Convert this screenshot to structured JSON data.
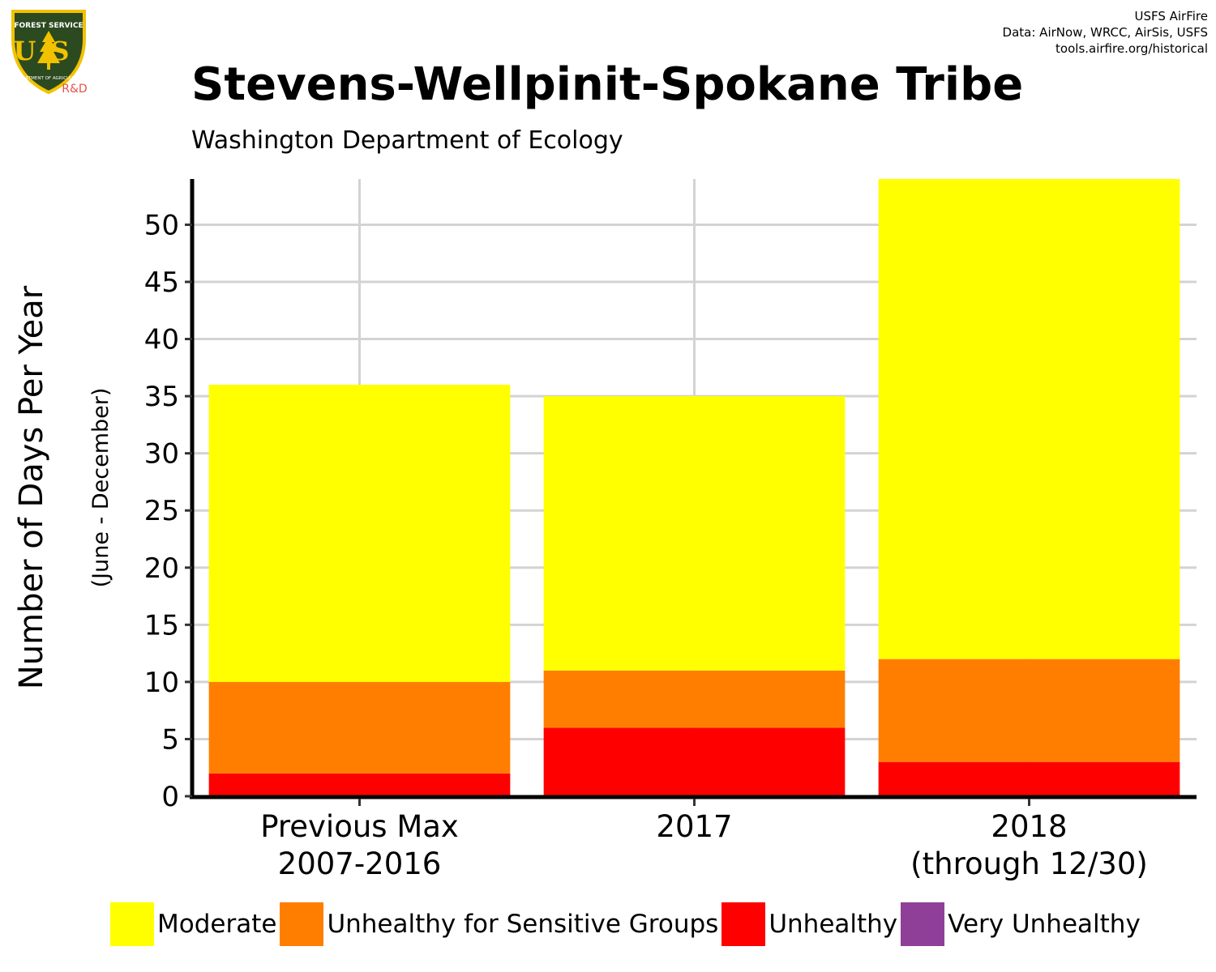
{
  "logo": {
    "top_text": "FOREST SERVICE",
    "main_text": "US",
    "bottom_text": "DEPARTMENT OF AGRICULTURE",
    "rd_text": "R&D",
    "colors": {
      "shield": "#2c4a1f",
      "border": "#f2c200",
      "rd": "#e8504a"
    }
  },
  "credits": {
    "line1": "USFS AirFire",
    "line2": "Data: AirNow, WRCC, AirSis, USFS",
    "line3": "tools.airfire.org/historical"
  },
  "title": "Stevens-Wellpinit-Spokane Tribe",
  "subtitle": "Washington Department of Ecology",
  "chart_data": {
    "type": "bar",
    "stacked": true,
    "title": "Stevens-Wellpinit-Spokane Tribe",
    "subtitle": "Washington Department of Ecology",
    "ylabel": "Number of Days Per Year",
    "ylabel_sub": "(June - December)",
    "xlabel": "",
    "categories": [
      [
        "Previous Max",
        "2007-2016"
      ],
      [
        "2017"
      ],
      [
        "2018",
        "(through 12/30)"
      ]
    ],
    "series": [
      {
        "name": "Unhealthy",
        "color": "#ff0000",
        "values": [
          2,
          6,
          3
        ]
      },
      {
        "name": "Unhealthy for Sensitive Groups",
        "color": "#ff7e00",
        "values": [
          8,
          5,
          9
        ]
      },
      {
        "name": "Moderate",
        "color": "#ffff00",
        "values": [
          26,
          24,
          42
        ]
      }
    ],
    "ylim": [
      0,
      54
    ],
    "yticks": [
      0,
      5,
      10,
      15,
      20,
      25,
      30,
      35,
      40,
      45,
      50
    ],
    "grid": true,
    "legend_position": "bottom"
  },
  "legend": [
    {
      "label": "Moderate",
      "color": "#ffff00"
    },
    {
      "label": "Unhealthy for Sensitive Groups",
      "color": "#ff7e00"
    },
    {
      "label": "Unhealthy",
      "color": "#ff0000"
    },
    {
      "label": "Very Unhealthy",
      "color": "#8f3f97"
    }
  ]
}
